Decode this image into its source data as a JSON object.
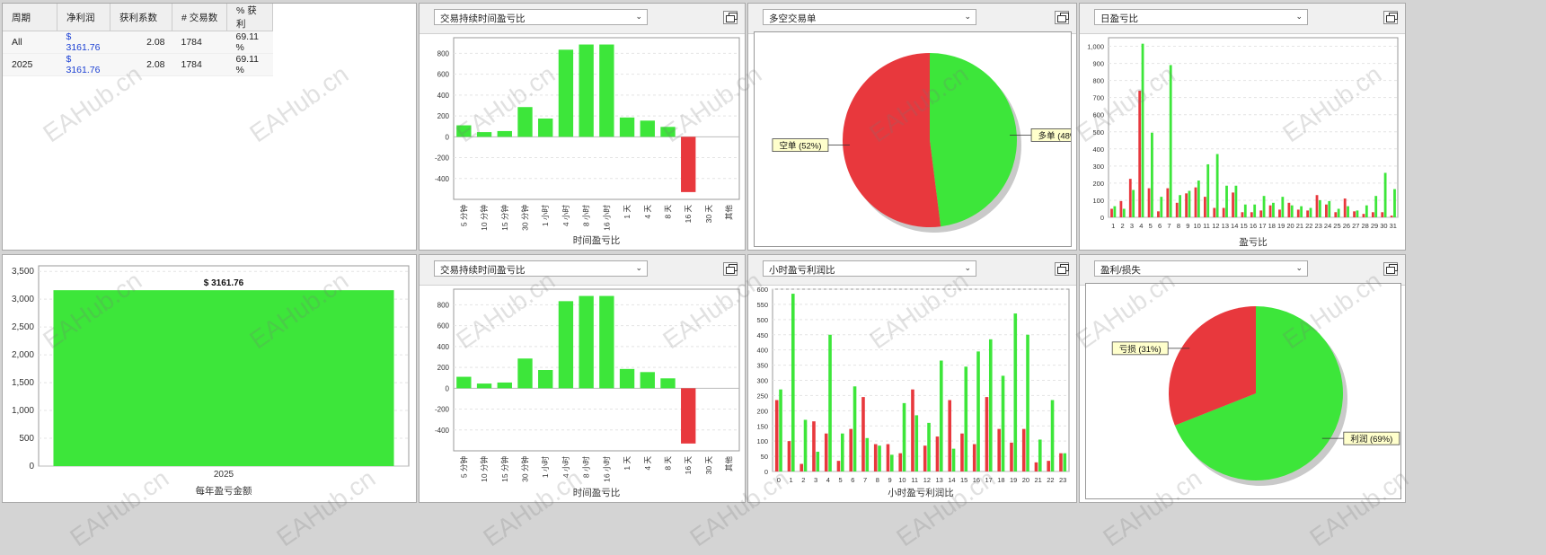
{
  "stats_table": {
    "headers": [
      "周期",
      "净利润",
      "获利系数",
      "# 交易数",
      "% 获利"
    ],
    "rows": [
      [
        "All",
        "$ 3161.76",
        "2.08",
        "1784",
        "69.11 %"
      ],
      [
        "2025",
        "$ 3161.76",
        "2.08",
        "1784",
        "69.11 %"
      ]
    ]
  },
  "panels": {
    "duration_top": {
      "dropdown": "交易持续时间盈亏比",
      "xlabel": "时间盈亏比"
    },
    "longshort": {
      "dropdown": "多空交易单"
    },
    "daily": {
      "dropdown": "日盈亏比",
      "xlabel": "盈亏比"
    },
    "yearly": {
      "xlabel": "每年盈亏金额"
    },
    "duration_bottom": {
      "dropdown": "交易持续时间盈亏比",
      "xlabel": "时间盈亏比"
    },
    "hourly": {
      "dropdown": "小时盈亏利润比",
      "xlabel": "小时盈亏利润比"
    },
    "profitloss": {
      "dropdown": "盈利/损失"
    }
  },
  "watermark": "EAHub.cn",
  "colors": {
    "green": "#3de63a",
    "red": "#e8383d"
  },
  "chart_data": [
    {
      "id": "duration_top",
      "type": "bar",
      "xlabel": "时间盈亏比",
      "categories": [
        "5 分钟",
        "10 分钟",
        "15 分钟",
        "30 分钟",
        "1 小时",
        "4 小时",
        "8 小时",
        "16 小时",
        "1 天",
        "4 天",
        "8 天",
        "16 天",
        "30 天",
        "其他"
      ],
      "values": [
        110,
        45,
        55,
        285,
        175,
        835,
        885,
        885,
        185,
        155,
        95,
        -530,
        0,
        0
      ],
      "ylim": [
        -600,
        950
      ],
      "yticks": [
        -400,
        -200,
        0,
        200,
        400,
        600,
        800
      ]
    },
    {
      "id": "longshort",
      "type": "pie",
      "slices": [
        {
          "label": "多单",
          "percent": 48,
          "display": "多单 (48%)",
          "color": "#3de63a"
        },
        {
          "label": "空单",
          "percent": 52,
          "display": "空单 (52%)",
          "color": "#e8383d"
        }
      ]
    },
    {
      "id": "daily",
      "type": "bar",
      "xlabel": "盈亏比",
      "categories": [
        "1",
        "2",
        "3",
        "4",
        "5",
        "6",
        "7",
        "8",
        "9",
        "10",
        "11",
        "12",
        "13",
        "14",
        "15",
        "16",
        "17",
        "18",
        "19",
        "20",
        "21",
        "22",
        "23",
        "24",
        "25",
        "26",
        "27",
        "28",
        "29",
        "30",
        "31"
      ],
      "series": [
        {
          "color": "green",
          "values": [
            65,
            50,
            160,
            1015,
            495,
            120,
            890,
            130,
            155,
            215,
            310,
            370,
            185,
            185,
            75,
            75,
            125,
            85,
            120,
            70,
            65,
            55,
            100,
            95,
            50,
            65,
            40,
            70,
            125,
            260,
            165
          ]
        },
        {
          "color": "red",
          "values": [
            50,
            95,
            225,
            740,
            170,
            35,
            170,
            85,
            140,
            175,
            120,
            55,
            55,
            145,
            30,
            30,
            40,
            70,
            45,
            85,
            45,
            40,
            130,
            75,
            30,
            110,
            35,
            20,
            30,
            30,
            10
          ]
        }
      ],
      "ylim": [
        0,
        1050
      ],
      "yticks": [
        0,
        100,
        200,
        300,
        400,
        500,
        600,
        700,
        800,
        900,
        1000
      ],
      "ytick_labels": [
        "0",
        "100",
        "200",
        "300",
        "400",
        "500",
        "600",
        "700",
        "800",
        "900",
        "1,000"
      ]
    },
    {
      "id": "yearly",
      "type": "bar",
      "xlabel": "每年盈亏金额",
      "categories": [
        "2025"
      ],
      "values": [
        3161.76
      ],
      "value_label": "$ 3161.76",
      "ylim": [
        0,
        3600
      ],
      "yticks": [
        0,
        500,
        1000,
        1500,
        2000,
        2500,
        3000,
        3500
      ],
      "ytick_labels": [
        "0",
        "500",
        "1,000",
        "1,500",
        "2,000",
        "2,500",
        "3,000",
        "3,500"
      ]
    },
    {
      "id": "duration_bottom",
      "type": "bar",
      "xlabel": "时间盈亏比",
      "categories": [
        "5 分钟",
        "10 分钟",
        "15 分钟",
        "30 分钟",
        "1 小时",
        "4 小时",
        "8 小时",
        "16 小时",
        "1 天",
        "4 天",
        "8 天",
        "16 天",
        "30 天",
        "其他"
      ],
      "values": [
        110,
        45,
        55,
        285,
        175,
        835,
        885,
        885,
        185,
        155,
        95,
        -530,
        0,
        0
      ],
      "ylim": [
        -600,
        950
      ],
      "yticks": [
        -400,
        -200,
        0,
        200,
        400,
        600,
        800
      ]
    },
    {
      "id": "hourly",
      "type": "bar",
      "xlabel": "小时盈亏利润比",
      "categories": [
        "0",
        "1",
        "2",
        "3",
        "4",
        "5",
        "6",
        "7",
        "8",
        "9",
        "10",
        "11",
        "12",
        "13",
        "14",
        "15",
        "16",
        "17",
        "18",
        "19",
        "20",
        "21",
        "22",
        "23"
      ],
      "series": [
        {
          "color": "green",
          "values": [
            270,
            585,
            170,
            65,
            450,
            125,
            280,
            110,
            85,
            55,
            225,
            185,
            160,
            365,
            75,
            345,
            395,
            435,
            315,
            520,
            450,
            105,
            235,
            60
          ]
        },
        {
          "color": "red",
          "values": [
            235,
            100,
            25,
            165,
            125,
            35,
            140,
            245,
            90,
            90,
            60,
            270,
            85,
            115,
            235,
            125,
            90,
            245,
            140,
            95,
            140,
            30,
            35,
            60
          ]
        }
      ],
      "ylim": [
        0,
        600
      ],
      "yticks": [
        0,
        50,
        100,
        150,
        200,
        250,
        300,
        350,
        400,
        450,
        500,
        550,
        600
      ]
    },
    {
      "id": "profitloss",
      "type": "pie",
      "slices": [
        {
          "label": "利润",
          "percent": 69,
          "display": "利润 (69%)",
          "color": "#3de63a"
        },
        {
          "label": "亏损",
          "percent": 31,
          "display": "亏损 (31%)",
          "color": "#e8383d"
        }
      ]
    }
  ]
}
